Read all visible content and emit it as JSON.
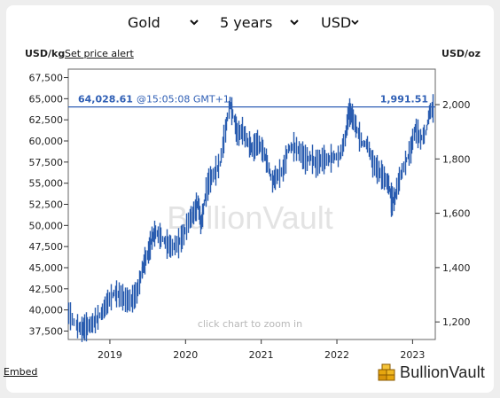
{
  "controls": {
    "metal": "Gold",
    "range": "5 years",
    "currency": "USD"
  },
  "labels": {
    "left_unit": "USD/kg",
    "alert_link": "Set price alert",
    "right_unit": "USD/oz",
    "watermark": "BullionVault",
    "zoom_hint": "click chart to zoom in",
    "embed_link": "Embed",
    "brand": "BullionVault"
  },
  "current": {
    "kg_price": "64,028.61",
    "time": "@15:05:08 GMT+1",
    "oz_price": "1,991.51"
  },
  "colors": {
    "series": "#2a5db0",
    "current_line": "#2f5fb5",
    "watermark": "#e3e3e3",
    "axis": "#333333"
  },
  "chart_data": {
    "type": "line",
    "style": "candlestick-like weekly bars",
    "left_axis": {
      "unit": "USD/kg",
      "ticks": [
        "37,500",
        "40,000",
        "42,500",
        "45,000",
        "47,500",
        "50,000",
        "52,500",
        "55,000",
        "57,500",
        "60,000",
        "62,500",
        "65,000",
        "67,500"
      ],
      "range": [
        36500,
        68500
      ]
    },
    "right_axis": {
      "unit": "USD/oz",
      "ticks": [
        "1,200",
        "1,400",
        "1,600",
        "1,800",
        "2,000"
      ]
    },
    "x_ticks": [
      "2019",
      "2020",
      "2021",
      "2022",
      "2023"
    ],
    "x_range": [
      2018.45,
      2023.3
    ],
    "current_value_kg": 64028.61,
    "series": [
      {
        "x": [
          2018.45,
          2018.55,
          2018.62,
          2018.68,
          2018.75,
          2018.82,
          2018.9,
          2018.97,
          2019.05,
          2019.12,
          2019.2,
          2019.28,
          2019.35,
          2019.42,
          2019.45,
          2019.5,
          2019.55,
          2019.6,
          2019.67,
          2019.75,
          2019.82,
          2019.9,
          2019.97,
          2020.05,
          2020.12,
          2020.16,
          2020.2,
          2020.24,
          2020.3,
          2020.38,
          2020.45,
          2020.52,
          2020.58,
          2020.62,
          2020.68,
          2020.75,
          2020.82,
          2020.88,
          2020.95,
          2021.02,
          2021.08,
          2021.14,
          2021.2,
          2021.28,
          2021.35,
          2021.42,
          2021.5,
          2021.58,
          2021.65,
          2021.72,
          2021.8,
          2021.88,
          2021.95,
          2022.03,
          2022.1,
          2022.15,
          2022.2,
          2022.26,
          2022.33,
          2022.4,
          2022.47,
          2022.55,
          2022.62,
          2022.68,
          2022.72,
          2022.76,
          2022.82,
          2022.9,
          2022.97,
          2023.03,
          2023.1,
          2023.17,
          2023.22,
          2023.28
        ],
        "values": [
          39600,
          38200,
          37700,
          38000,
          38300,
          38900,
          39800,
          41000,
          42000,
          41800,
          41200,
          41100,
          42000,
          44500,
          45500,
          46800,
          48500,
          49200,
          48600,
          47800,
          47400,
          47900,
          48900,
          50800,
          51700,
          52700,
          49700,
          52700,
          55200,
          56200,
          57300,
          61200,
          64500,
          63200,
          60800,
          61200,
          59800,
          59000,
          59800,
          58800,
          57300,
          55200,
          55800,
          56500,
          59100,
          59300,
          58800,
          57800,
          58000,
          57300,
          57800,
          57800,
          58100,
          58200,
          60300,
          63500,
          62900,
          61300,
          59700,
          59600,
          57300,
          56400,
          55600,
          54800,
          52800,
          53200,
          55500,
          57400,
          58900,
          61500,
          60200,
          61000,
          63400,
          64000
        ]
      }
    ],
    "grid": false,
    "title": ""
  }
}
